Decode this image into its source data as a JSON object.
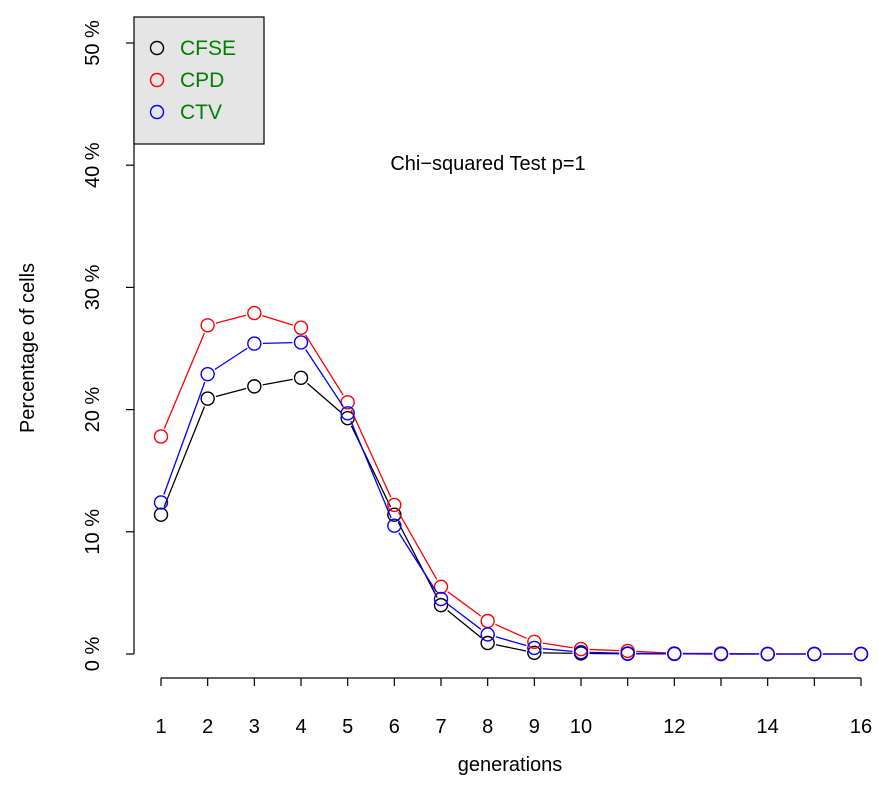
{
  "chart_data": {
    "type": "line",
    "title": "",
    "annotation": "Chi−squared Test p=1",
    "xlabel": "generations",
    "ylabel": "Percentage of cells",
    "x": [
      1,
      2,
      3,
      4,
      5,
      6,
      7,
      8,
      9,
      10,
      11,
      12,
      13,
      14,
      15,
      16
    ],
    "xticks": [
      1,
      2,
      3,
      4,
      5,
      6,
      7,
      8,
      9,
      10,
      11,
      12,
      13,
      14,
      15,
      16
    ],
    "xtick_labels": [
      "1",
      "2",
      "3",
      "4",
      "5",
      "6",
      "7",
      "8",
      "9",
      "10",
      "",
      "12",
      "",
      "14",
      "",
      "16"
    ],
    "yticks": [
      0,
      10,
      20,
      30,
      40,
      50
    ],
    "ytick_labels": [
      "0 %",
      "10 %",
      "20 %",
      "30 %",
      "40 %",
      "50 %"
    ],
    "xlim": [
      1,
      16
    ],
    "ylim": [
      0,
      50
    ],
    "grid": false,
    "legend_position": "top-left",
    "legend_background": "#e5e5e5",
    "legend_text_color": "#008000",
    "series": [
      {
        "name": "CFSE",
        "color": "#000000",
        "values": [
          11.4,
          20.9,
          21.9,
          22.6,
          19.3,
          11.4,
          4.0,
          0.9,
          0.1,
          0.05,
          0.02,
          0.01,
          0.0,
          0.0,
          0.0,
          0.0
        ]
      },
      {
        "name": "CPD",
        "color": "#ff0000",
        "values": [
          17.8,
          26.9,
          27.9,
          26.7,
          20.6,
          12.2,
          5.5,
          2.7,
          1.0,
          0.4,
          0.25,
          0.05,
          0.05,
          0.0,
          0.0,
          0.0
        ]
      },
      {
        "name": "CTV",
        "color": "#0000ff",
        "values": [
          12.4,
          22.9,
          25.4,
          25.5,
          19.7,
          10.5,
          4.5,
          1.6,
          0.5,
          0.15,
          0.05,
          0.02,
          0.0,
          0.0,
          0.0,
          0.0
        ]
      }
    ]
  }
}
